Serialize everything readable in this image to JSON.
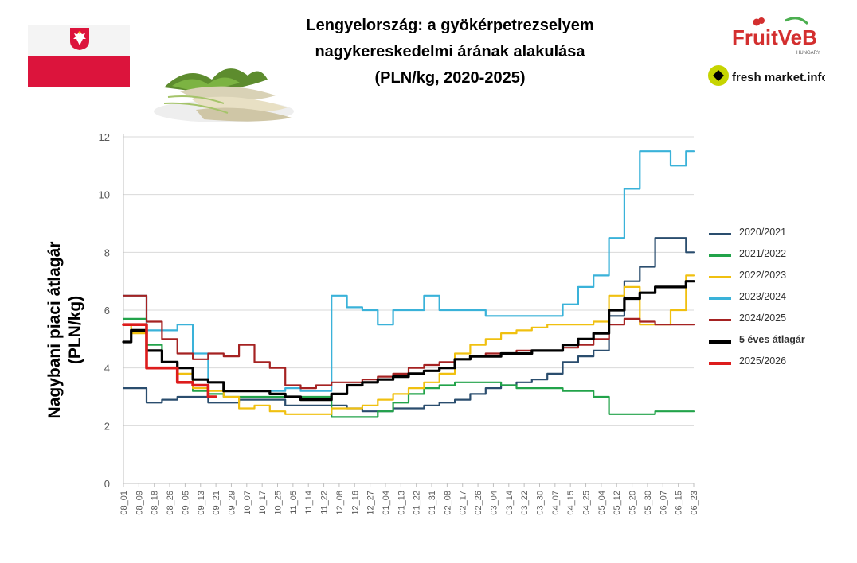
{
  "header": {
    "title_line1": "Lengyelország: a gyökérpetrezselyem",
    "title_line2": "nagykereskedelmi árának alakulása",
    "title_line3": "(PLN/kg, 2020-2025)"
  },
  "logos": {
    "fruitveb": "FruitVeB",
    "fruitveb_sub": "HUNGARY",
    "freshmarket": "fresh market.info"
  },
  "colors": {
    "grid": "#d9d9d9",
    "axis": "#bfbfbf",
    "flag_red": "#dc143c"
  },
  "chart_data": {
    "type": "line",
    "title": "Lengyelország: a gyökérpetrezselyem nagykereskedelmi árának alakulása (PLN/kg, 2020-2025)",
    "ylabel_line1": "Nagybani piaci átlagár",
    "ylabel_line2": "(PLN/kg)",
    "xlabel": "",
    "ylim": [
      0,
      12
    ],
    "yticks": [
      "0",
      "2",
      "4",
      "6",
      "8",
      "10",
      "12"
    ],
    "grid": "horizontal",
    "legend_position": "right",
    "categories": [
      "08_01",
      "08_09",
      "08_18",
      "08_26",
      "09_05",
      "09_13",
      "09_21",
      "09_29",
      "10_07",
      "10_17",
      "10_25",
      "11_05",
      "11_14",
      "11_22",
      "12_08",
      "12_16",
      "12_27",
      "01_04",
      "01_13",
      "01_22",
      "01_31",
      "02_08",
      "02_17",
      "02_26",
      "03_04",
      "03_14",
      "03_22",
      "03_30",
      "04_07",
      "04_15",
      "04_25",
      "05_04",
      "05_12",
      "05_20",
      "05_30",
      "06_07",
      "06_15",
      "06_23"
    ],
    "series": [
      {
        "name": "2020/2021",
        "color": "#2a4d6e",
        "width": 2.2,
        "values": [
          3.3,
          3.3,
          2.8,
          2.9,
          3.0,
          3.0,
          2.8,
          2.8,
          2.9,
          2.9,
          2.9,
          2.7,
          2.7,
          2.7,
          2.7,
          2.6,
          2.5,
          2.5,
          2.6,
          2.6,
          2.7,
          2.8,
          2.9,
          3.1,
          3.3,
          3.4,
          3.5,
          3.6,
          3.8,
          4.2,
          4.4,
          4.6,
          5.8,
          7.0,
          7.5,
          8.5,
          8.5,
          8.0
        ]
      },
      {
        "name": "2021/2022",
        "color": "#22a34a",
        "width": 2.2,
        "values": [
          5.7,
          5.7,
          4.8,
          4.2,
          3.5,
          3.2,
          3.1,
          3.0,
          3.0,
          3.0,
          3.0,
          3.0,
          3.0,
          3.0,
          2.3,
          2.3,
          2.3,
          2.5,
          2.8,
          3.1,
          3.3,
          3.4,
          3.5,
          3.5,
          3.5,
          3.4,
          3.3,
          3.3,
          3.3,
          3.2,
          3.2,
          3.0,
          2.4,
          2.4,
          2.4,
          2.5,
          2.5,
          2.5
        ]
      },
      {
        "name": "2022/2023",
        "color": "#f0c010",
        "width": 2.2,
        "values": [
          5.5,
          5.2,
          4.0,
          4.0,
          3.8,
          3.3,
          3.2,
          3.0,
          2.6,
          2.7,
          2.5,
          2.4,
          2.4,
          2.4,
          2.6,
          2.6,
          2.7,
          2.9,
          3.1,
          3.3,
          3.5,
          3.8,
          4.5,
          4.8,
          5.0,
          5.2,
          5.3,
          5.4,
          5.5,
          5.5,
          5.5,
          5.6,
          6.5,
          6.8,
          5.5,
          5.5,
          6.0,
          7.2
        ]
      },
      {
        "name": "2023/2024",
        "color": "#3ab2d9",
        "width": 2.2,
        "values": [
          6.5,
          6.5,
          5.3,
          5.3,
          5.5,
          4.5,
          3.5,
          3.2,
          3.2,
          3.2,
          3.2,
          3.3,
          3.2,
          3.2,
          6.5,
          6.1,
          6.0,
          5.5,
          6.0,
          6.0,
          6.5,
          6.0,
          6.0,
          6.0,
          5.8,
          5.8,
          5.8,
          5.8,
          5.8,
          6.2,
          6.8,
          7.2,
          8.5,
          10.2,
          11.5,
          11.5,
          11.0,
          11.5
        ]
      },
      {
        "name": "2024/2025",
        "color": "#a52222",
        "width": 2.2,
        "values": [
          6.5,
          6.5,
          5.6,
          5.0,
          4.5,
          4.3,
          4.5,
          4.4,
          4.8,
          4.2,
          4.0,
          3.4,
          3.3,
          3.4,
          3.5,
          3.5,
          3.6,
          3.7,
          3.8,
          4.0,
          4.1,
          4.2,
          4.3,
          4.4,
          4.5,
          4.5,
          4.6,
          4.6,
          4.6,
          4.7,
          4.8,
          5.0,
          5.5,
          5.7,
          5.6,
          5.5,
          5.5,
          5.5
        ]
      },
      {
        "name": "5 éves átlagár",
        "color": "#000000",
        "width": 3.2,
        "values": [
          4.9,
          5.3,
          4.6,
          4.2,
          4.0,
          3.6,
          3.5,
          3.2,
          3.2,
          3.2,
          3.1,
          3.0,
          2.9,
          2.9,
          3.1,
          3.4,
          3.5,
          3.6,
          3.7,
          3.8,
          3.9,
          4.0,
          4.3,
          4.4,
          4.4,
          4.5,
          4.5,
          4.6,
          4.6,
          4.8,
          5.0,
          5.2,
          6.0,
          6.4,
          6.6,
          6.8,
          6.8,
          7.0
        ]
      },
      {
        "name": "2025/2026",
        "color": "#dd1c1c",
        "width": 3.6,
        "values": [
          5.5,
          5.5,
          4.0,
          4.0,
          3.5,
          3.4,
          3.0,
          null,
          null,
          null,
          null,
          null,
          null,
          null,
          null,
          null,
          null,
          null,
          null,
          null,
          null,
          null,
          null,
          null,
          null,
          null,
          null,
          null,
          null,
          null,
          null,
          null,
          null,
          null,
          null,
          null,
          null,
          null
        ]
      }
    ]
  }
}
